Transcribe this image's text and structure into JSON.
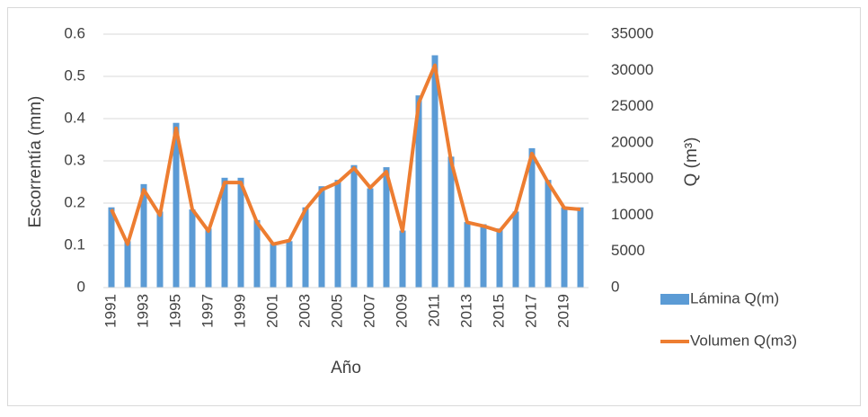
{
  "chart_data": {
    "type": "bar_line",
    "categories": [
      "1991",
      null,
      "1993",
      null,
      "1995",
      null,
      "1997",
      null,
      "1999",
      null,
      "2001",
      null,
      "2003",
      null,
      "2005",
      null,
      "2007",
      null,
      "2009",
      null,
      "2011",
      null,
      "2013",
      null,
      "2015",
      null,
      "2017",
      null,
      "2019",
      null
    ],
    "series": [
      {
        "name": "Lámina Q(m)",
        "type": "bar",
        "color": "#5b9bd5",
        "axis": "y",
        "values": [
          0.19,
          0.11,
          0.245,
          0.18,
          0.39,
          0.185,
          0.14,
          0.26,
          0.26,
          0.16,
          0.105,
          0.11,
          0.19,
          0.24,
          0.255,
          0.29,
          0.235,
          0.285,
          0.135,
          0.455,
          0.55,
          0.31,
          0.155,
          0.15,
          0.14,
          0.18,
          0.33,
          0.255,
          0.19,
          0.19
        ]
      },
      {
        "name": "Volumen Q(m3)",
        "type": "line",
        "color": "#ed7d31",
        "axis": "y2",
        "values": [
          10800,
          6000,
          13500,
          10000,
          22000,
          10800,
          7800,
          14500,
          14500,
          9000,
          6000,
          6500,
          10800,
          13500,
          14500,
          16500,
          13800,
          16000,
          7800,
          25500,
          30700,
          17500,
          9000,
          8500,
          7800,
          10500,
          18500,
          14500,
          11000,
          10800
        ]
      }
    ],
    "xlabel": "Año",
    "ylabel": "Escorrentía (mm)",
    "y2label": "Q (m³)",
    "ylim": [
      0,
      0.6
    ],
    "yticks": [
      0,
      0.1,
      0.2,
      0.3,
      0.4,
      0.5,
      0.6
    ],
    "y2lim": [
      0,
      35000
    ],
    "y2ticks": [
      0,
      5000,
      10000,
      15000,
      20000,
      25000,
      30000,
      35000
    ],
    "grid": true,
    "legend": "bottom-right"
  }
}
